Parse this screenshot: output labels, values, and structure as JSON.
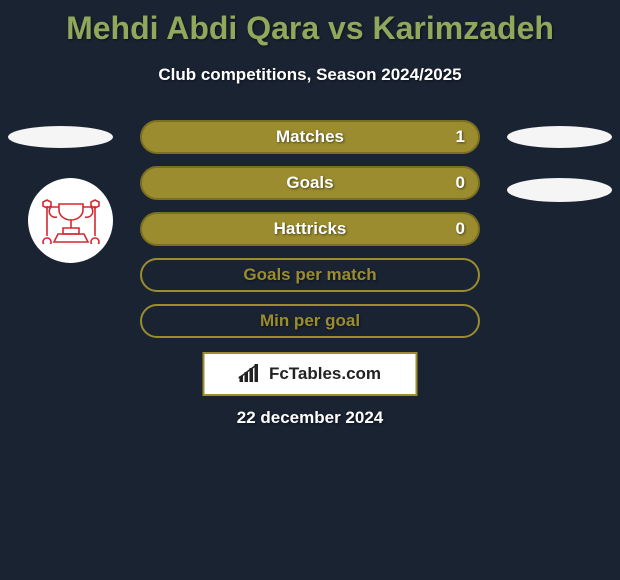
{
  "title": "Mehdi Abdi Qara vs Karimzadeh",
  "subtitle": "Club competitions, Season 2024/2025",
  "bars": [
    {
      "label": "Matches",
      "value": "1",
      "fill_pct": 100,
      "show_value": true
    },
    {
      "label": "Goals",
      "value": "0",
      "fill_pct": 100,
      "show_value": true
    },
    {
      "label": "Hattricks",
      "value": "0",
      "fill_pct": 100,
      "show_value": true
    },
    {
      "label": "Goals per match",
      "value": "",
      "fill_pct": 0,
      "show_value": false
    },
    {
      "label": "Min per goal",
      "value": "",
      "fill_pct": 0,
      "show_value": false
    }
  ],
  "bar_style": {
    "fill_color": "#9a8c2f",
    "border_color": "#7a6e20",
    "outline_color": "#9a8c2f"
  },
  "footer_brand": "FcTables.com",
  "date": "22 december 2024",
  "colors": {
    "background": "#1a2332",
    "title_color": "#8fa85c",
    "text_color": "#ffffff",
    "ellipse_color": "#f5f5f5",
    "badge_stroke": "#d6282f"
  }
}
